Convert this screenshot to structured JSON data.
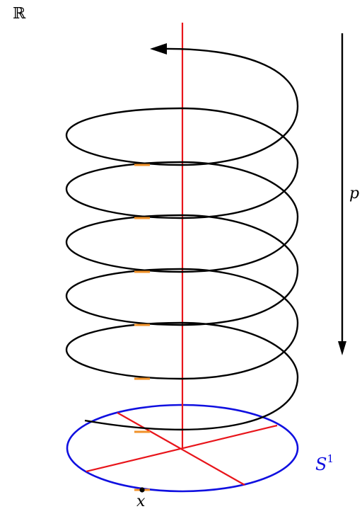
{
  "labels": {
    "space_top": "ℝ",
    "projection": "p",
    "circle_base": "S",
    "circle_exponent": "1",
    "point": "x"
  },
  "colors": {
    "helix": "#000000",
    "axis": "#e8151b",
    "circle": "#1010e0",
    "fiber_marks": "#f0922a",
    "arrow": "#000000",
    "point": "#000000"
  }
}
